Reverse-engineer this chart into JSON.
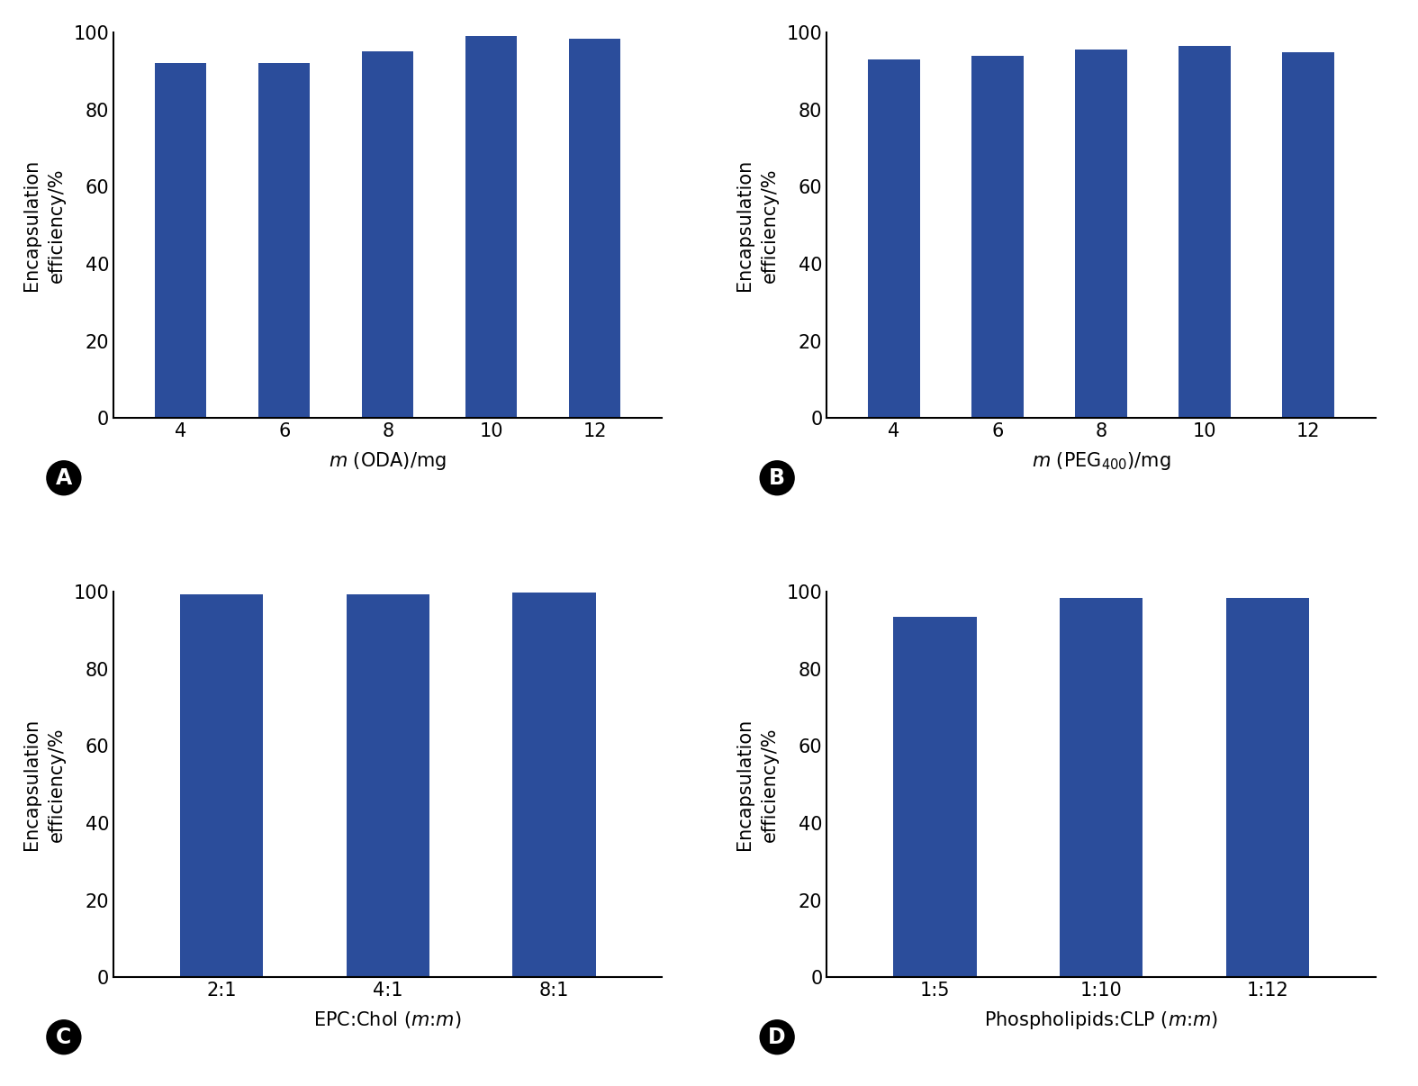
{
  "bar_color": "#2B4D9B",
  "background_color": "#ffffff",
  "ylabel": "Encapsulation\nefficiency/%",
  "ylim": [
    0,
    100
  ],
  "yticks": [
    0,
    20,
    40,
    60,
    80,
    100
  ],
  "subplots": [
    {
      "label": "A",
      "categories": [
        "4",
        "6",
        "8",
        "10",
        "12"
      ],
      "values": [
        92.0,
        92.2,
        95.2,
        99.0,
        98.5
      ],
      "xlabel": "$m$ (ODA)/mg"
    },
    {
      "label": "B",
      "categories": [
        "4",
        "6",
        "8",
        "10",
        "12"
      ],
      "values": [
        93.0,
        94.0,
        95.5,
        96.5,
        95.0
      ],
      "xlabel": "$m$ (PEG$_{400}$)/mg"
    },
    {
      "label": "C",
      "categories": [
        "2:1",
        "4:1",
        "8:1"
      ],
      "values": [
        99.3,
        99.3,
        99.8
      ],
      "xlabel": "EPC:Chol ($m$:$m$)"
    },
    {
      "label": "D",
      "categories": [
        "1:5",
        "1:10",
        "1:12"
      ],
      "values": [
        93.5,
        98.5,
        98.5
      ],
      "xlabel": "Phospholipids:CLP ($m$:$m$)"
    }
  ]
}
